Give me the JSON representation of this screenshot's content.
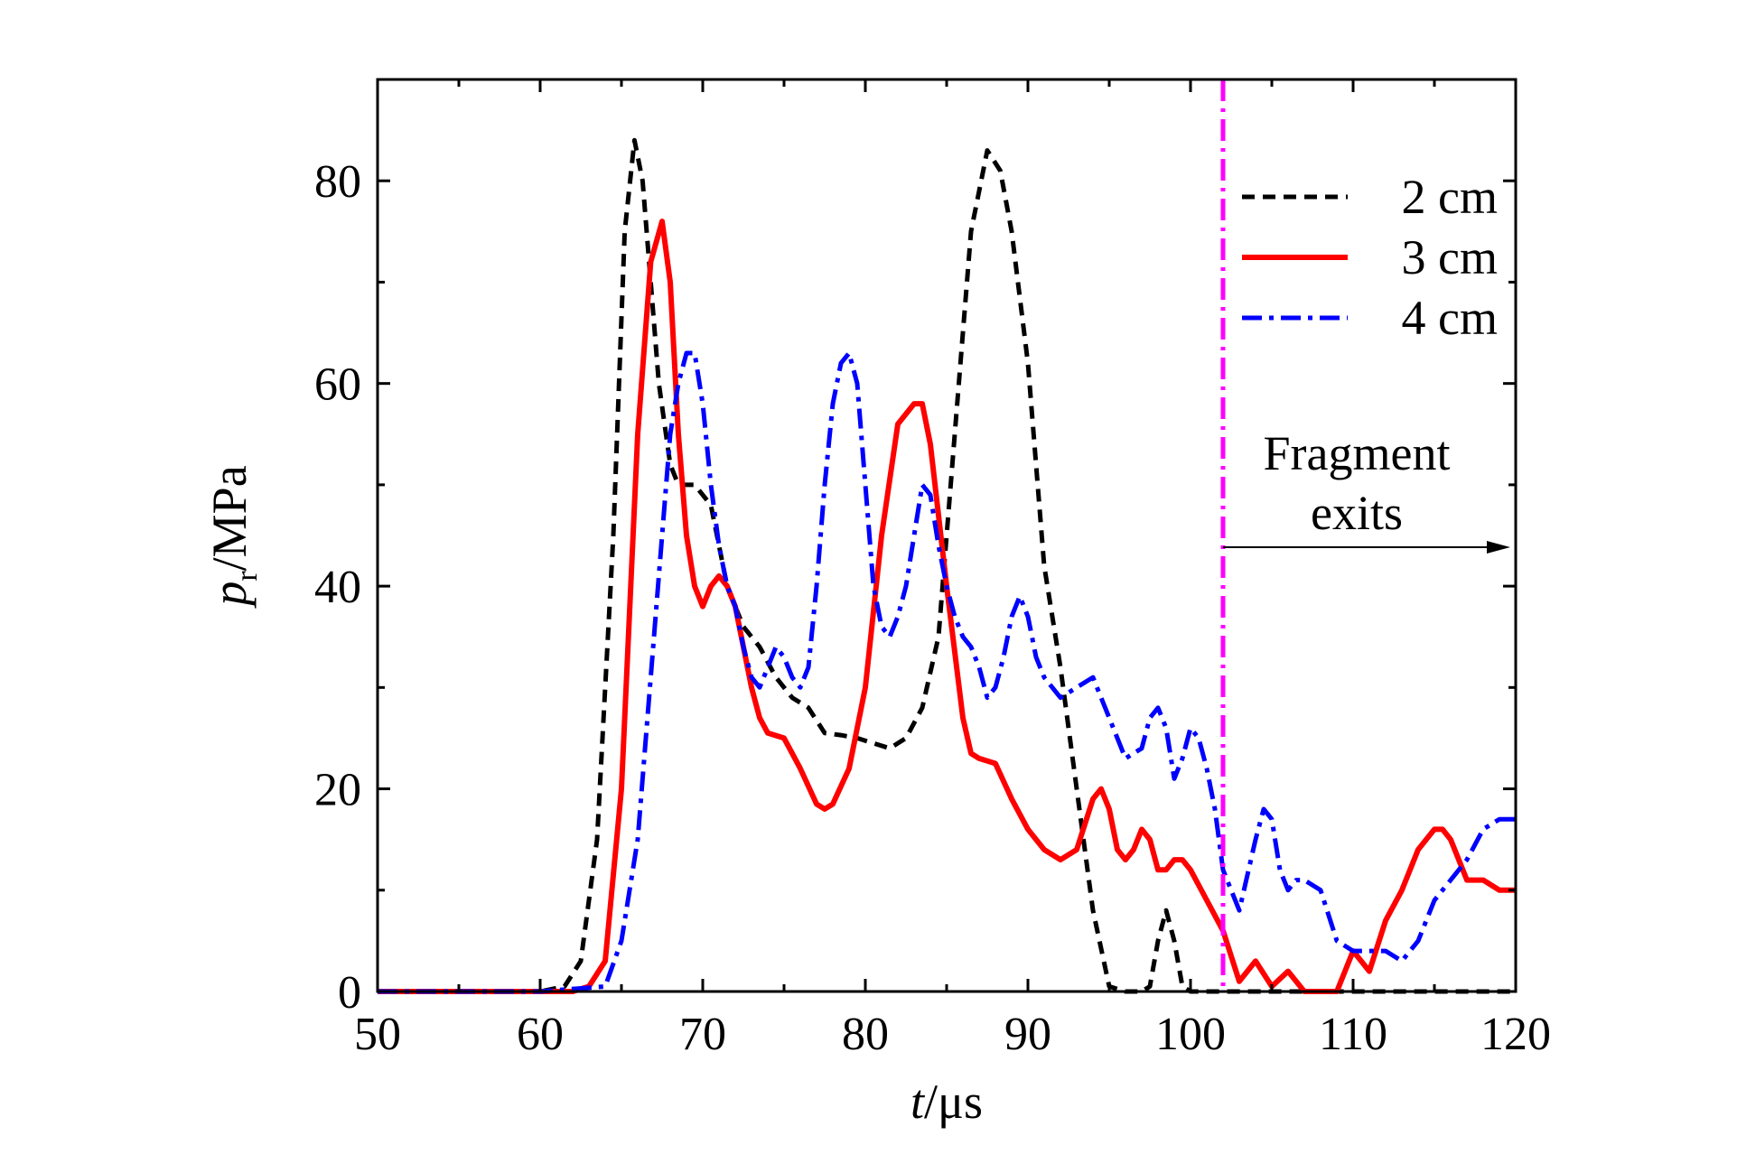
{
  "chart_data": {
    "type": "line",
    "xlabel": {
      "italic": "t",
      "rest": "/μs"
    },
    "ylabel": {
      "italic": "p",
      "sub": "r",
      "rest": "/MPa"
    },
    "xlim": [
      50,
      120
    ],
    "ylim": [
      0,
      90
    ],
    "xticks": [
      50,
      60,
      70,
      80,
      90,
      100,
      110,
      120
    ],
    "yticks": [
      0,
      20,
      40,
      60,
      80
    ],
    "grid": false,
    "legend_position": "top-right",
    "annotation": {
      "line1": "Fragment",
      "line2": "exits",
      "x": 102,
      "arrow_to": 120
    },
    "vline": {
      "x": 102,
      "color": "#ff00ff"
    },
    "series": [
      {
        "name": "2 cm",
        "color": "#000000",
        "style": "dash",
        "x": [
          50,
          55,
          60,
          61.5,
          62.5,
          63.5,
          64.5,
          65.2,
          65.8,
          66.3,
          66.8,
          67.3,
          68,
          68.5,
          69.5,
          70.5,
          71.5,
          72.5,
          73.5,
          74.5,
          75.5,
          76.5,
          77.5,
          78.5,
          79.5,
          80.5,
          81.5,
          82.5,
          83.5,
          84.5,
          85.5,
          86.5,
          87.5,
          88.3,
          89,
          90,
          91,
          92,
          93,
          94,
          95,
          96,
          97,
          97.5,
          98,
          98.5,
          99,
          99.5,
          100,
          101,
          102,
          110,
          120
        ],
        "y": [
          0,
          0,
          0,
          0.5,
          3,
          15,
          45,
          75,
          84,
          80,
          70,
          60,
          52,
          50,
          50,
          48,
          40,
          36,
          34,
          31,
          29,
          28,
          25.5,
          25.3,
          25,
          24.5,
          24,
          25,
          28,
          35,
          55,
          75,
          83,
          81,
          75,
          62,
          42,
          32,
          20,
          8,
          0.5,
          0,
          0,
          0.5,
          5,
          8,
          5,
          0.5,
          0,
          0,
          0,
          0,
          0
        ]
      },
      {
        "name": "3 cm",
        "color": "#ff0000",
        "style": "solid",
        "x": [
          50,
          55,
          60,
          62,
          63,
          64,
          65,
          66,
          66.8,
          67.5,
          68,
          68.5,
          69,
          69.5,
          70,
          70.5,
          71,
          71.5,
          72,
          72.5,
          73,
          73.5,
          74,
          75,
          76,
          77,
          77.5,
          78,
          79,
          80,
          81,
          82,
          83,
          83.5,
          84,
          85,
          86,
          86.5,
          87,
          88,
          89,
          90,
          91,
          92,
          93,
          94,
          94.5,
          95,
          95.5,
          96,
          96.5,
          97,
          97.5,
          98,
          98.5,
          99,
          99.5,
          100,
          101,
          102,
          103,
          104,
          105,
          106,
          107,
          108,
          109,
          110,
          111,
          112,
          113,
          114,
          115,
          115.5,
          116,
          117,
          118,
          119,
          120
        ],
        "y": [
          0,
          0,
          0,
          0,
          0.5,
          3,
          20,
          55,
          72,
          76,
          70,
          55,
          45,
          40,
          38,
          40,
          41,
          40,
          38,
          34,
          30,
          27,
          25.5,
          25,
          22,
          18.5,
          18,
          18.5,
          22,
          30,
          45,
          56,
          58,
          58,
          54,
          40,
          27,
          23.5,
          23,
          22.5,
          19,
          16,
          14,
          13,
          14,
          19,
          20,
          18,
          14,
          13,
          14,
          16,
          15,
          12,
          12,
          13,
          13,
          12,
          9,
          6,
          1,
          3,
          0.5,
          2,
          0,
          0,
          0,
          4,
          2,
          7,
          10,
          14,
          16,
          16,
          15,
          11,
          11,
          10,
          10
        ]
      },
      {
        "name": "4 cm",
        "color": "#0000ff",
        "style": "dashdot",
        "x": [
          50,
          55,
          60,
          64,
          65,
          66,
          67,
          68,
          68.5,
          69,
          69.5,
          70,
          70.5,
          71,
          71.5,
          72,
          72.5,
          73,
          73.5,
          74,
          74.5,
          75,
          75.5,
          76,
          76.5,
          77,
          77.5,
          78,
          78.5,
          79,
          79.5,
          80,
          80.5,
          81,
          81.5,
          82,
          82.5,
          83,
          83.5,
          84,
          84.5,
          85,
          85.5,
          86,
          86.5,
          87,
          87.5,
          88,
          88.5,
          89,
          89.5,
          90,
          90.5,
          91,
          92,
          93,
          94,
          95,
          96,
          97,
          97.5,
          98,
          98.5,
          99,
          99.5,
          100,
          100.5,
          101,
          101.5,
          102,
          103,
          104,
          104.5,
          105,
          105.5,
          106,
          106.5,
          107,
          108,
          109,
          110,
          111,
          112,
          113,
          114,
          115,
          116,
          117,
          118,
          119,
          120
        ],
        "y": [
          0,
          0,
          0,
          0.5,
          5,
          15,
          35,
          55,
          60,
          63,
          63,
          58,
          50,
          44,
          40,
          38,
          34,
          31,
          30,
          32,
          34,
          33,
          31,
          30,
          32,
          40,
          50,
          58,
          62,
          63,
          60,
          50,
          40,
          36,
          35,
          37,
          40,
          45,
          50,
          49,
          44,
          40,
          37,
          35,
          34,
          32,
          29,
          30,
          33,
          37,
          39,
          37,
          33,
          31,
          29,
          30,
          31,
          27,
          23,
          24,
          27,
          28,
          26,
          21,
          23,
          26,
          25,
          22,
          18,
          12,
          8,
          15,
          18,
          17,
          12,
          10,
          11,
          11,
          10,
          5,
          4,
          4,
          4,
          3,
          5,
          9,
          11,
          13,
          16,
          17,
          17
        ]
      }
    ]
  }
}
